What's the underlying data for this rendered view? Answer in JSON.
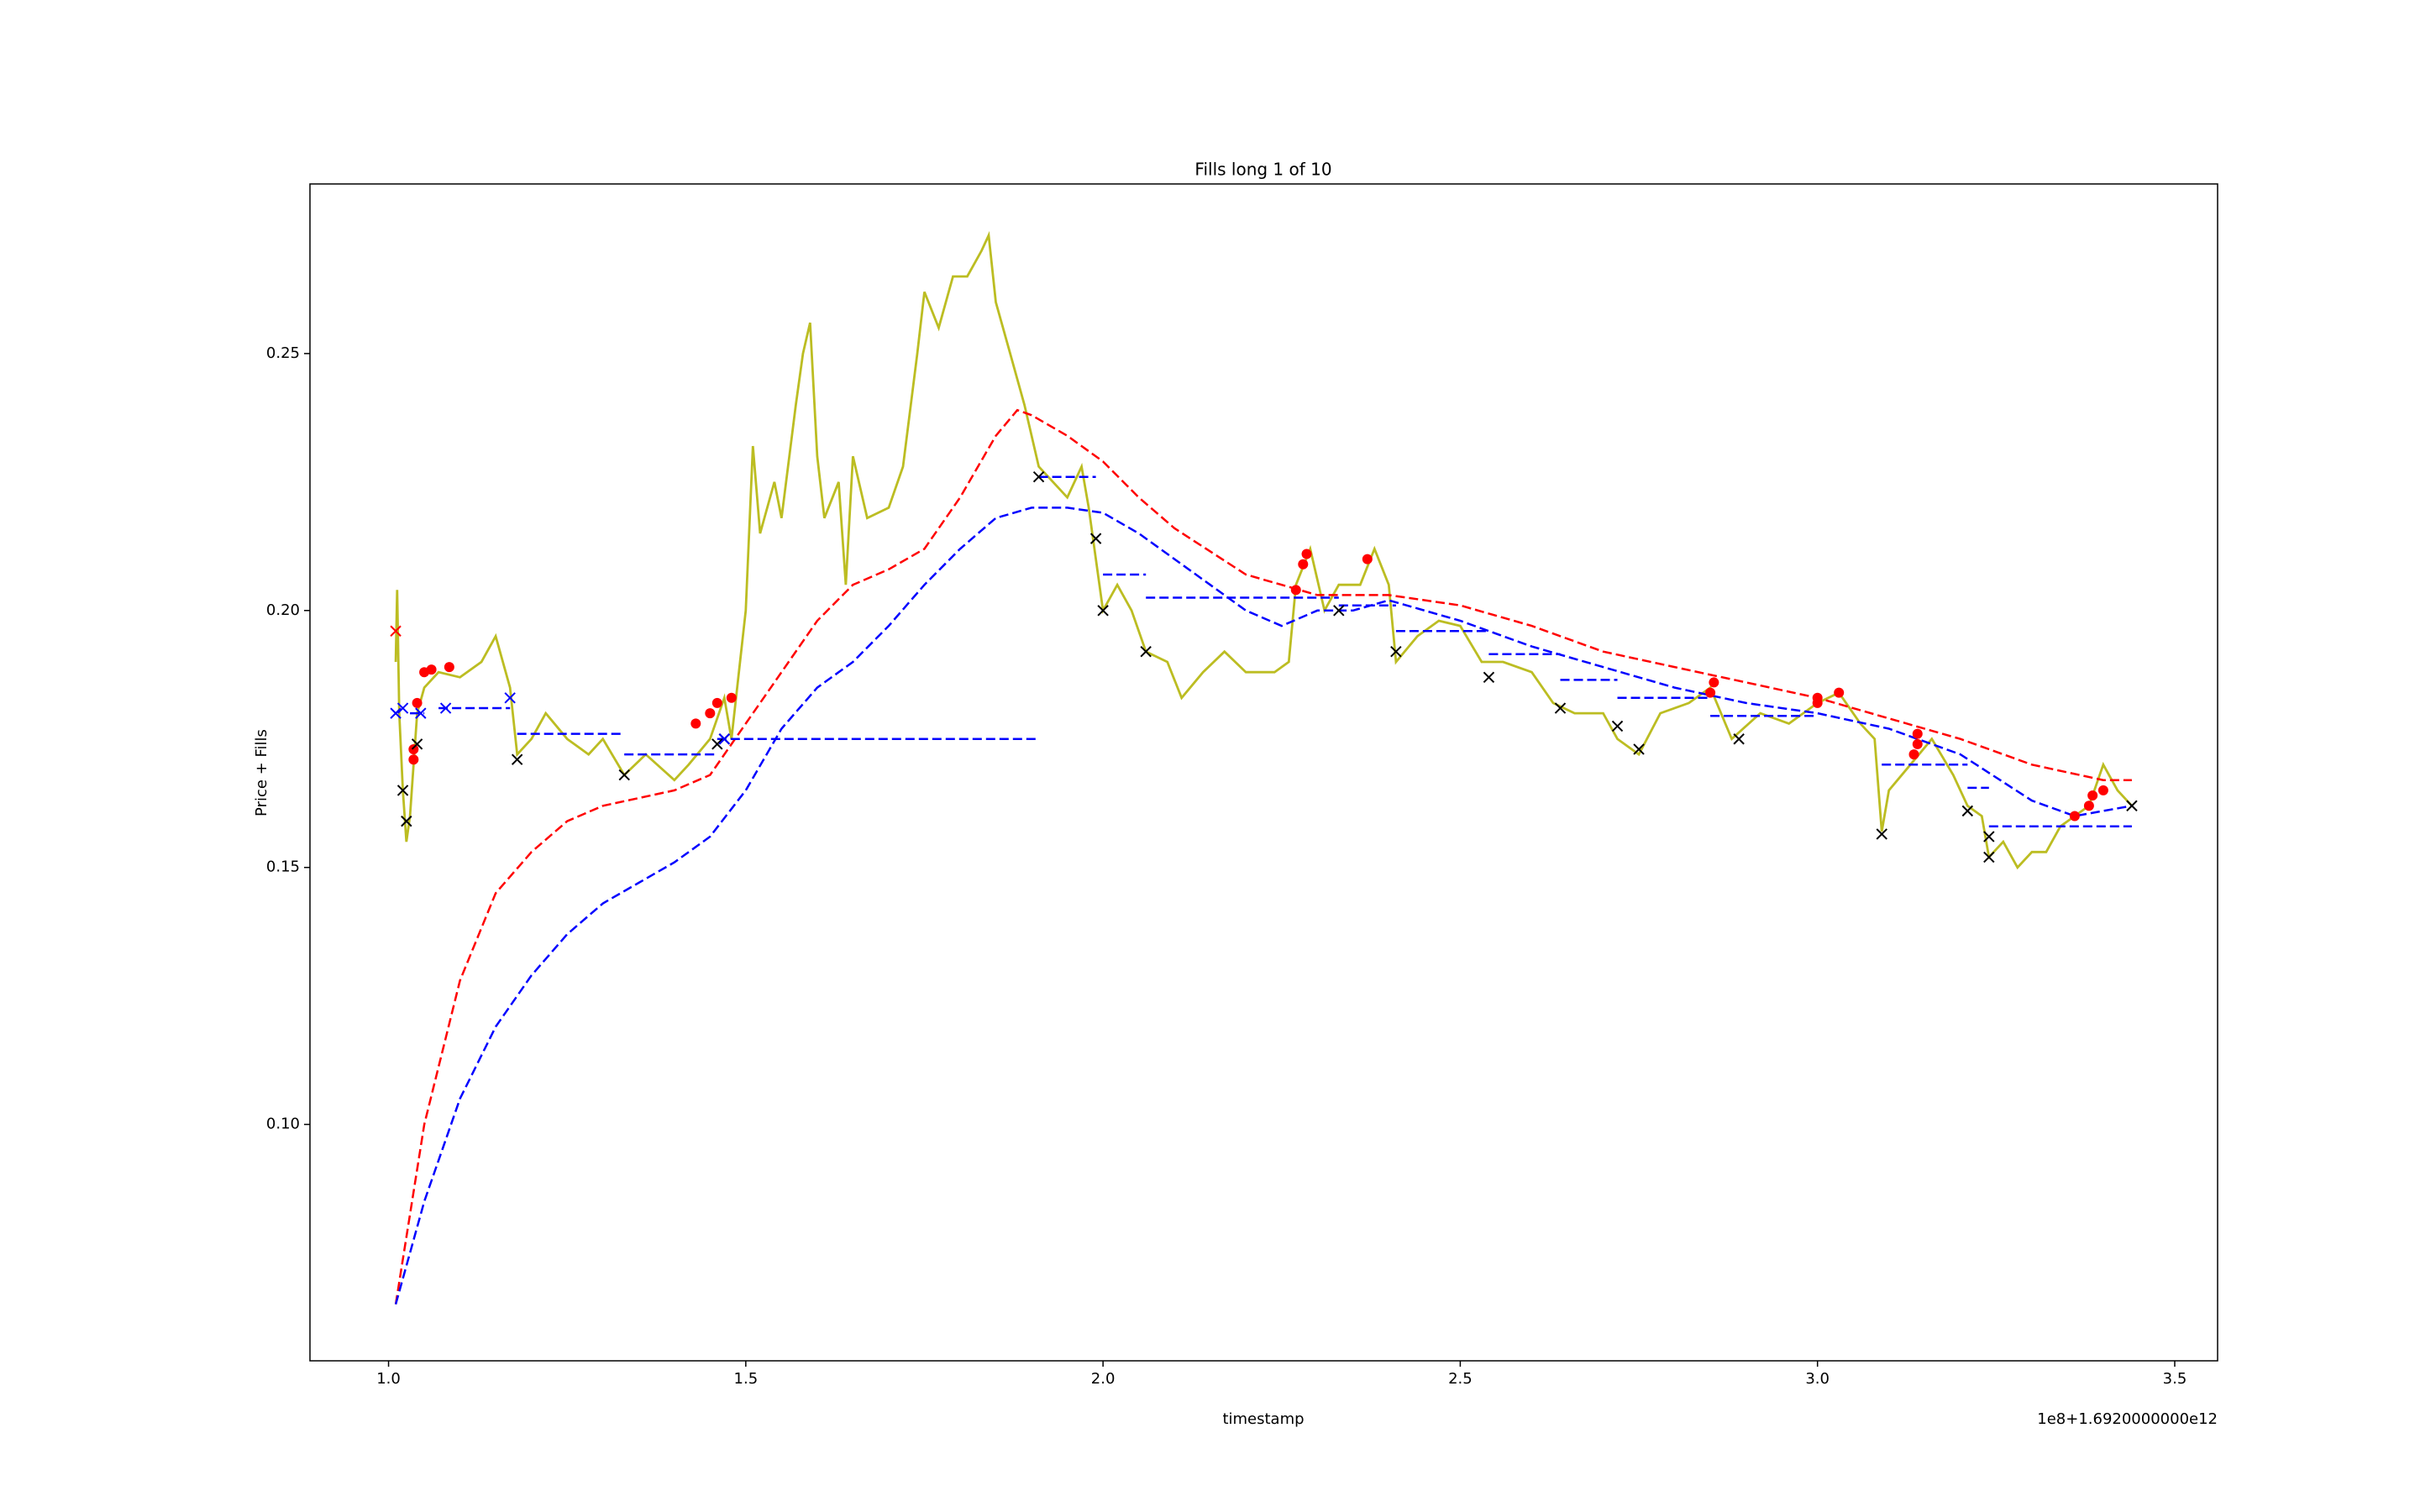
{
  "chart_data": {
    "type": "line",
    "title": "Fills long 1 of 10",
    "xlabel": "timestamp",
    "ylabel": "Price + Fills",
    "x_offset_label": "1e8+1.6920000000e12",
    "xlim": [
      0.89,
      3.56
    ],
    "ylim": [
      0.054,
      0.283
    ],
    "xticks": [
      {
        "value": 1,
        "label": "1.0"
      },
      1.5,
      {
        "value": 2,
        "label": "2.0"
      },
      2.5,
      {
        "value": 3,
        "label": "3.0"
      },
      3.5
    ],
    "yticks": [
      {
        "value": 0.1,
        "label": "0.10"
      },
      0.15,
      {
        "value": 0.2,
        "label": "0.20"
      },
      0.25
    ],
    "grid": false,
    "series": [
      {
        "color": "#bcbd22",
        "style": "solid",
        "x": [
          1.01,
          1.012,
          1.015,
          1.02,
          1.025,
          1.03,
          1.04,
          1.05,
          1.07,
          1.1,
          1.13,
          1.15,
          1.17,
          1.18,
          1.2,
          1.22,
          1.25,
          1.28,
          1.3,
          1.33,
          1.36,
          1.4,
          1.42,
          1.45,
          1.47,
          1.48,
          1.5,
          1.51,
          1.52,
          1.54,
          1.55,
          1.57,
          1.58,
          1.59,
          1.6,
          1.61,
          1.63,
          1.64,
          1.65,
          1.67,
          1.7,
          1.72,
          1.74,
          1.75,
          1.77,
          1.79,
          1.81,
          1.83,
          1.84,
          1.85,
          1.87,
          1.89,
          1.91,
          1.93,
          1.95,
          1.97,
          1.98,
          2.0,
          2.02,
          2.04,
          2.06,
          2.09,
          2.11,
          2.14,
          2.17,
          2.2,
          2.24,
          2.26,
          2.27,
          2.29,
          2.31,
          2.33,
          2.36,
          2.38,
          2.4,
          2.41,
          2.44,
          2.47,
          2.5,
          2.53,
          2.56,
          2.6,
          2.63,
          2.66,
          2.7,
          2.72,
          2.75,
          2.78,
          2.82,
          2.85,
          2.88,
          2.92,
          2.96,
          3.0,
          3.03,
          3.06,
          3.08,
          3.09,
          3.1,
          3.13,
          3.16,
          3.19,
          3.21,
          3.23,
          3.24,
          3.26,
          3.28,
          3.3,
          3.32,
          3.34,
          3.36,
          3.38,
          3.4,
          3.42,
          3.44
        ],
        "values": [
          0.19,
          0.204,
          0.18,
          0.165,
          0.155,
          0.16,
          0.18,
          0.185,
          0.188,
          0.187,
          0.19,
          0.195,
          0.185,
          0.172,
          0.175,
          0.18,
          0.175,
          0.172,
          0.175,
          0.168,
          0.172,
          0.167,
          0.17,
          0.175,
          0.183,
          0.175,
          0.2,
          0.232,
          0.215,
          0.225,
          0.218,
          0.24,
          0.25,
          0.256,
          0.23,
          0.218,
          0.225,
          0.205,
          0.23,
          0.218,
          0.22,
          0.228,
          0.25,
          0.262,
          0.255,
          0.265,
          0.265,
          0.27,
          0.273,
          0.26,
          0.25,
          0.24,
          0.228,
          0.225,
          0.222,
          0.228,
          0.22,
          0.2,
          0.205,
          0.2,
          0.192,
          0.19,
          0.183,
          0.188,
          0.192,
          0.188,
          0.188,
          0.19,
          0.205,
          0.212,
          0.2,
          0.205,
          0.205,
          0.212,
          0.205,
          0.19,
          0.195,
          0.198,
          0.197,
          0.19,
          0.19,
          0.188,
          0.182,
          0.18,
          0.18,
          0.175,
          0.172,
          0.18,
          0.182,
          0.185,
          0.175,
          0.18,
          0.178,
          0.182,
          0.184,
          0.178,
          0.175,
          0.157,
          0.165,
          0.17,
          0.175,
          0.168,
          0.162,
          0.16,
          0.152,
          0.155,
          0.15,
          0.153,
          0.153,
          0.158,
          0.16,
          0.162,
          0.17,
          0.165,
          0.162
        ]
      },
      {
        "color": "#ff0000",
        "style": "dashed",
        "x": [
          1.01,
          1.05,
          1.1,
          1.15,
          1.2,
          1.25,
          1.3,
          1.4,
          1.45,
          1.5,
          1.55,
          1.6,
          1.65,
          1.7,
          1.75,
          1.8,
          1.85,
          1.88,
          1.9,
          1.95,
          2.0,
          2.05,
          2.1,
          2.2,
          2.3,
          2.4,
          2.5,
          2.6,
          2.7,
          2.8,
          2.9,
          3.0,
          3.1,
          3.2,
          3.3,
          3.4,
          3.44
        ],
        "values": [
          0.065,
          0.1,
          0.128,
          0.145,
          0.153,
          0.159,
          0.162,
          0.165,
          0.168,
          0.178,
          0.188,
          0.198,
          0.205,
          0.208,
          0.212,
          0.222,
          0.234,
          0.239,
          0.238,
          0.234,
          0.229,
          0.222,
          0.216,
          0.207,
          0.203,
          0.203,
          0.201,
          0.197,
          0.192,
          0.189,
          0.186,
          0.183,
          0.179,
          0.175,
          0.17,
          0.167,
          0.167
        ]
      },
      {
        "color": "#0000ff",
        "style": "dashed",
        "x": [
          1.01,
          1.05,
          1.1,
          1.15,
          1.2,
          1.25,
          1.3,
          1.35,
          1.4,
          1.45,
          1.5,
          1.55,
          1.6,
          1.65,
          1.7,
          1.75,
          1.8,
          1.85,
          1.9,
          1.95,
          2.0,
          2.05,
          2.1,
          2.15,
          2.2,
          2.25,
          2.3,
          2.35,
          2.4,
          2.45,
          2.5,
          2.6,
          2.7,
          2.8,
          2.9,
          3.0,
          3.1,
          3.2,
          3.3,
          3.36,
          3.44
        ],
        "values": [
          0.065,
          0.085,
          0.105,
          0.119,
          0.129,
          0.137,
          0.143,
          0.147,
          0.151,
          0.156,
          0.165,
          0.177,
          0.185,
          0.19,
          0.197,
          0.205,
          0.212,
          0.218,
          0.22,
          0.22,
          0.219,
          0.215,
          0.21,
          0.205,
          0.2,
          0.197,
          0.2,
          0.2,
          0.202,
          0.2,
          0.198,
          0.193,
          0.189,
          0.185,
          0.182,
          0.18,
          0.177,
          0.172,
          0.163,
          0.16,
          0.162
        ]
      },
      {
        "color": "#0000ff",
        "style": "dashed",
        "x": [
          1.03,
          1.05,
          1.05,
          1.07,
          1.17,
          1.17,
          1.18,
          1.33,
          1.33,
          1.33,
          1.46,
          1.46,
          1.46,
          1.91,
          1.91,
          1.91,
          1.99,
          1.99,
          2.0,
          2.06,
          2.06,
          2.06,
          2.33,
          2.33,
          2.33,
          2.41,
          2.41,
          2.41,
          2.54,
          2.54,
          2.54,
          2.64,
          2.64,
          2.64,
          2.72,
          2.72,
          2.72,
          2.85,
          2.85,
          2.85,
          3.0,
          3.0,
          3.09,
          3.21,
          3.21,
          3.21,
          3.24,
          3.24,
          3.24,
          3.44
        ],
        "values": [
          0.18,
          0.18,
          null,
          0.181,
          0.181,
          null,
          0.176,
          0.176,
          null,
          0.172,
          0.172,
          null,
          0.175,
          0.175,
          null,
          0.226,
          0.226,
          null,
          0.207,
          0.207,
          null,
          0.2025,
          0.2025,
          null,
          0.201,
          0.201,
          null,
          0.196,
          0.196,
          null,
          0.1915,
          0.1915,
          null,
          0.1865,
          0.1865,
          null,
          0.183,
          0.183,
          null,
          0.1795,
          0.1795,
          null,
          0.17,
          0.17,
          null,
          0.1655,
          0.1655,
          null,
          0.158,
          0.158
        ]
      },
      {
        "color": "#ff0000",
        "marker": "o",
        "x": [
          1.035,
          1.035,
          1.04,
          1.05,
          1.06,
          1.085,
          1.43,
          1.45,
          1.46,
          1.48,
          2.27,
          2.28,
          2.285,
          2.37,
          2.85,
          2.855,
          3.0,
          3.0,
          3.03,
          3.135,
          3.14,
          3.14,
          3.36,
          3.38,
          3.385,
          3.4
        ],
        "values": [
          0.171,
          0.173,
          0.182,
          0.188,
          0.1885,
          0.189,
          0.178,
          0.18,
          0.182,
          0.183,
          0.204,
          0.209,
          0.211,
          0.21,
          0.184,
          0.186,
          0.182,
          0.183,
          0.184,
          0.172,
          0.174,
          0.176,
          0.16,
          0.162,
          0.164,
          0.165
        ]
      },
      {
        "color": "#000000",
        "marker": "x",
        "x": [
          1.02,
          1.025,
          1.04,
          1.18,
          1.33,
          1.46,
          1.47,
          1.91,
          1.99,
          2.0,
          2.06,
          2.33,
          2.41,
          2.54,
          2.64,
          2.72,
          2.75,
          2.89,
          3.09,
          3.21,
          3.24,
          3.24,
          3.44
        ],
        "values": [
          0.165,
          0.159,
          0.174,
          0.171,
          0.168,
          0.174,
          0.175,
          0.226,
          0.214,
          0.2,
          0.192,
          0.2,
          0.192,
          0.187,
          0.181,
          0.1775,
          0.173,
          0.175,
          0.1565,
          0.161,
          0.152,
          0.156,
          0.162
        ]
      },
      {
        "color": "#0000ff",
        "marker": "x",
        "x": [
          1.01,
          1.02,
          1.045,
          1.08,
          1.17,
          1.47
        ],
        "values": [
          0.18,
          0.181,
          0.18,
          0.181,
          0.183,
          0.175
        ]
      },
      {
        "color": "#ff0000",
        "marker": "x",
        "x": [
          1.01
        ],
        "values": [
          0.196
        ]
      }
    ]
  }
}
